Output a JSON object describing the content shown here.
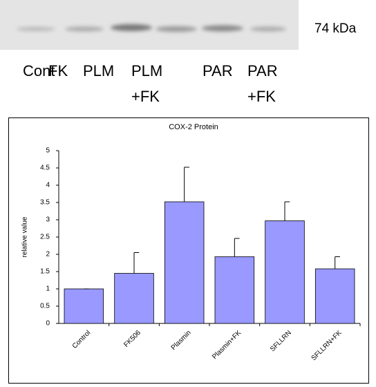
{
  "blot": {
    "marker": "74 kDa",
    "lane_labels": [
      "Cont",
      "FK",
      "PLM",
      "PLM",
      "PAR",
      "PAR"
    ],
    "lane_sublabels": [
      "+FK",
      "+FK"
    ]
  },
  "chart_data": {
    "type": "bar",
    "title": "COX-2 Protein",
    "y_label": "relative value",
    "categories": [
      "Control",
      "FK506",
      "Plasmin",
      "Plasmin+FK",
      "SFLLRN",
      "SFLLRN+FK"
    ],
    "values": [
      1.0,
      1.45,
      3.52,
      1.93,
      2.97,
      1.58
    ],
    "errors": [
      0.0,
      0.6,
      1.0,
      0.53,
      0.55,
      0.35
    ],
    "color": "#9999ff",
    "ylim": [
      0,
      5
    ],
    "yticks": [
      0,
      0.5,
      1,
      1.5,
      2,
      2.5,
      3,
      3.5,
      4,
      4.5,
      5
    ]
  }
}
